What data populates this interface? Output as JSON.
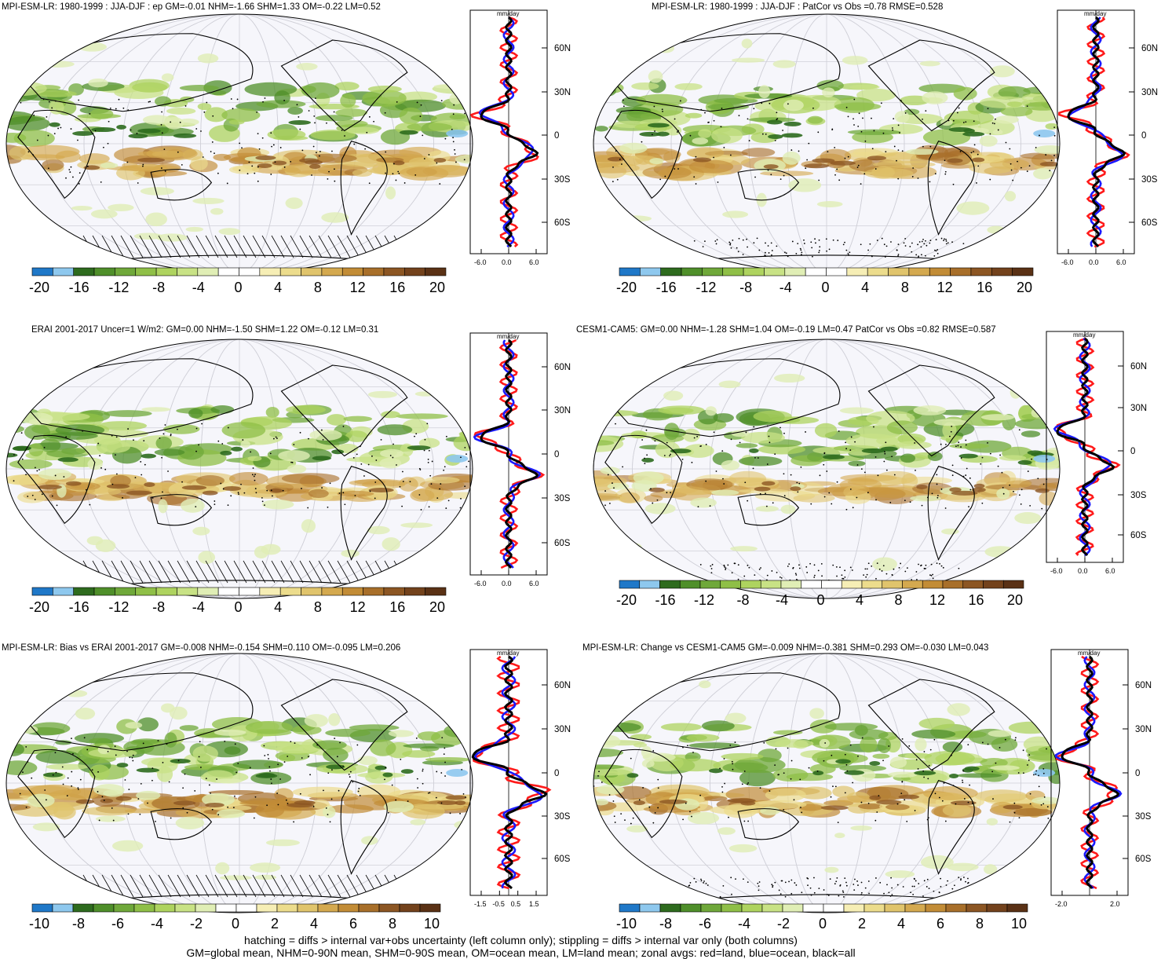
{
  "panels": [
    {
      "id": "p1",
      "title": "MPI-ESM-LR: 1980-1999 : JJA-DJF : ep GM=-0.01 NHM=-1.66 SHM=1.33 OM=-0.22 LM=0.52",
      "hatching": true,
      "stippling": true,
      "colorbar": "cb20",
      "zonal": "z6a",
      "reddish": 0.55
    },
    {
      "id": "p2",
      "title": "MPI-ESM-LR: 1980-1999 : JJA-DJF : PatCor vs Obs =0.78 RMSE=0.528",
      "hatching": false,
      "stippling": true,
      "colorbar": "cb20",
      "zonal": "z6a",
      "reddish": 0.5
    },
    {
      "id": "p3",
      "title": "ERAI 2001-2017 Uncer=1 W/m2: GM=0.00 NHM=-1.50 SHM=1.22 OM=-0.12 LM=0.31",
      "hatching": true,
      "stippling": true,
      "colorbar": "cb20",
      "zonal": "z6a",
      "reddish": 0.5
    },
    {
      "id": "p4",
      "title": "CESM1-CAM5: GM=0.00 NHM=-1.28 SHM=1.04 OM=-0.19 LM=0.47 PatCor vs Obs =0.82 RMSE=0.587",
      "hatching": false,
      "stippling": true,
      "colorbar": "cb20",
      "zonal": "z6a",
      "reddish": 0.45
    },
    {
      "id": "p5",
      "title": "MPI-ESM-LR: Bias vs ERAI 2001-2017 GM=-0.008 NHM=-0.154 SHM=0.110 OM=-0.095 LM=0.206",
      "hatching": true,
      "stippling": true,
      "colorbar": "cb10",
      "zonal": "z15",
      "reddish": 0.6
    },
    {
      "id": "p6",
      "title": "MPI-ESM-LR: Change vs CESM1-CAM5 GM=-0.009 NHM=-0.381 SHM=0.293 OM=-0.030 LM=0.043",
      "hatching": false,
      "stippling": true,
      "colorbar": "cb10",
      "zonal": "z2",
      "reddish": 0.6
    }
  ],
  "colorbars": {
    "cb20": {
      "labels": [
        "-20",
        "-16",
        "-12",
        "-8",
        "-4",
        "0",
        "4",
        "8",
        "12",
        "16",
        "20"
      ]
    },
    "cb10": {
      "labels": [
        "-10",
        "-8",
        "-6",
        "-4",
        "-2",
        "0",
        "2",
        "4",
        "6",
        "8",
        "10"
      ]
    },
    "colors": [
      "#1f78c8",
      "#8ec8ee",
      "#2e6b1e",
      "#4f8f2a",
      "#6fa83a",
      "#8fbf47",
      "#aed35f",
      "#c8e285",
      "#e0eeb5",
      "#ffffff",
      "#ffffff",
      "#f6eeb5",
      "#ecdc8c",
      "#e0c46c",
      "#d4a94f",
      "#c28c36",
      "#a86f2a",
      "#8c5623",
      "#73421c",
      "#5a3115"
    ]
  },
  "zonal_plots": {
    "units": "mm/day",
    "lat_labels": [
      "60N",
      "30N",
      "0",
      "30S",
      "60S"
    ],
    "z6a": {
      "xticks": [
        "-6.0",
        "0.0",
        "6.0"
      ]
    },
    "z15": {
      "xticks": [
        "-1.5",
        "-0.5",
        "0.5",
        "1.5"
      ]
    },
    "z2": {
      "xticks": [
        "-2.0",
        "2.0"
      ]
    }
  },
  "chart_data": {
    "type": "map",
    "description_series": [
      {
        "name": "land",
        "color": "#ff1a1a"
      },
      {
        "name": "ocean",
        "color": "#1a1aff"
      },
      {
        "name": "all",
        "color": "#000000"
      }
    ]
  },
  "footer": {
    "line1": "hatching = diffs > internal var+obs uncertainty (left column only); stippling = diffs > internal var only (both columns)",
    "line2": "GM=global mean, NHM=0-90N mean, SHM=0-90S mean, OM=ocean mean, LM=land mean; zonal avgs: red=land, blue=ocean, black=all"
  }
}
